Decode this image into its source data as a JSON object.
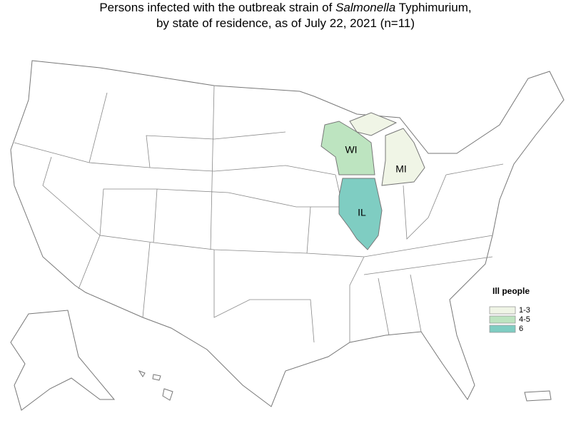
{
  "title": {
    "line1": [
      "Persons infected with the outbreak strain of ",
      "Salmonella",
      " Typhimurium,"
    ],
    "line2": "by state of residence, as of July 22, 2021 (n=11)"
  },
  "states": [
    {
      "label": "WI",
      "color": "#bde4c0"
    },
    {
      "label": "MI",
      "color": "#f0f5e6"
    },
    {
      "label": "IL",
      "color": "#7fcdc2"
    }
  ],
  "legend": {
    "title": "Ill people",
    "items": [
      {
        "label": "1-3",
        "color": "#f0f5e6"
      },
      {
        "label": "4-5",
        "color": "#bde4c0"
      },
      {
        "label": "6",
        "color": "#7fcdc2"
      }
    ]
  }
}
